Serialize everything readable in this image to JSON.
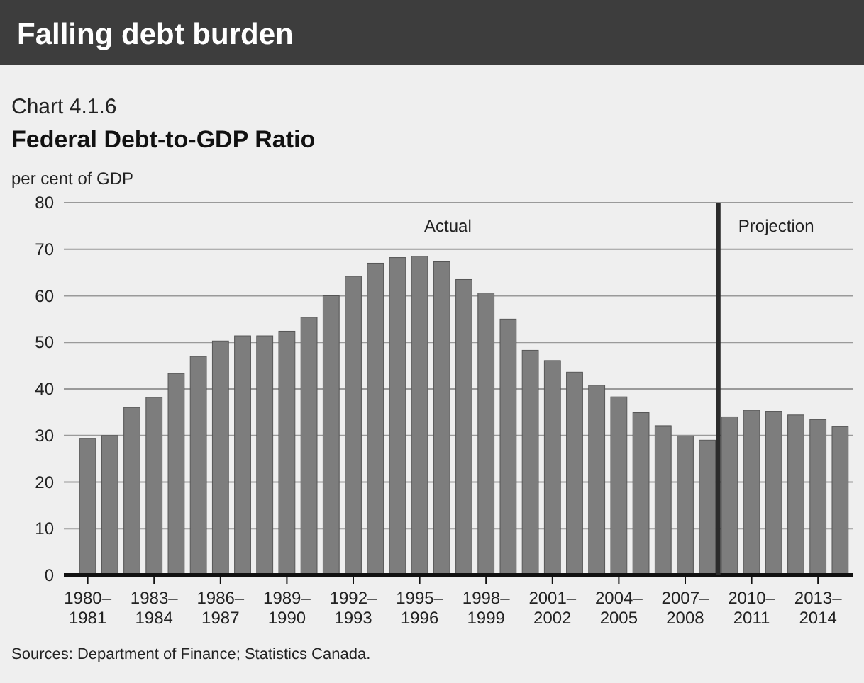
{
  "chart_data": {
    "type": "bar",
    "title": "Federal Debt-to-GDP Ratio",
    "subtitle": "Chart 4.1.6",
    "ylabel": "per cent of GDP",
    "categories": [
      "1980–1981",
      null,
      null,
      "1983–1984",
      null,
      null,
      "1986–1987",
      null,
      null,
      "1989–1990",
      null,
      null,
      "1992–1993",
      null,
      null,
      "1995–1996",
      null,
      null,
      "1998–1999",
      null,
      null,
      "2001–2002",
      null,
      null,
      "2004–2005",
      null,
      null,
      "2007–2008",
      null,
      null,
      "2010–2011",
      null,
      null,
      "2013–2014",
      null
    ],
    "values": [
      29.4,
      30,
      36,
      38.2,
      43.3,
      47,
      50.3,
      51.4,
      51.4,
      52.4,
      55.4,
      60,
      64.2,
      67,
      68.2,
      68.5,
      67.3,
      63.5,
      60.6,
      55,
      48.3,
      46.1,
      43.6,
      40.8,
      38.3,
      34.9,
      32.1,
      29.9,
      29,
      34,
      35.4,
      35.2,
      34.4,
      33.4,
      32
    ],
    "color": "#7d7d7d",
    "ylim": [
      0,
      80
    ],
    "yticks": [
      0,
      10,
      20,
      30,
      40,
      50,
      60,
      70,
      80
    ],
    "grid": "y",
    "annotations": [
      "Falling debt burden",
      "Actual",
      "Projection",
      "Sources: Department of Finance; Statistics Canada."
    ]
  }
}
